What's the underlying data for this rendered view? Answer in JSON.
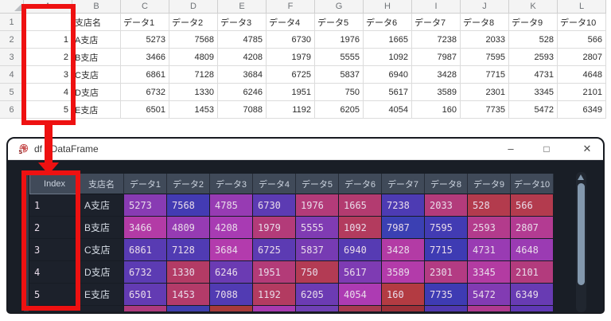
{
  "shared_table": {
    "index": [
      "1",
      "2",
      "3",
      "4",
      "5"
    ],
    "branches": [
      "A支店",
      "B支店",
      "C支店",
      "D支店",
      "E支店"
    ],
    "data_series": [
      [
        5273,
        7568,
        4785,
        6730,
        1976,
        1665,
        7238,
        2033,
        528,
        566
      ],
      [
        3466,
        4809,
        4208,
        1979,
        5555,
        1092,
        7987,
        7595,
        2593,
        2807
      ],
      [
        6861,
        7128,
        3684,
        6725,
        5837,
        6940,
        3428,
        7715,
        4731,
        4648
      ],
      [
        6732,
        1330,
        6246,
        1951,
        750,
        5617,
        3589,
        2301,
        3345,
        2101
      ],
      [
        6501,
        1453,
        7088,
        1192,
        6205,
        4054,
        160,
        7735,
        5472,
        6349
      ]
    ]
  },
  "excel": {
    "column_letters": [
      "A",
      "B",
      "C",
      "D",
      "E",
      "F",
      "G",
      "H",
      "I",
      "J",
      "K",
      "L"
    ],
    "row_numbers": [
      "1",
      "2",
      "3",
      "4",
      "5",
      "6"
    ],
    "header_cells": [
      "",
      "支店名",
      "データ1",
      "データ2",
      "データ3",
      "データ4",
      "データ5",
      "データ6",
      "データ7",
      "データ8",
      "データ9",
      "データ10"
    ]
  },
  "window": {
    "title": "df - DataFrame",
    "controls": {
      "minimize": "–",
      "maximize": "□",
      "close": "✕"
    }
  },
  "dataframe": {
    "corner_label": "Index",
    "column_headers": [
      "支店名",
      "データ1",
      "データ2",
      "データ3",
      "データ4",
      "データ5",
      "データ6",
      "データ7",
      "データ8",
      "データ9",
      "データ10"
    ],
    "colormap": {
      "min_hue": 0.66,
      "hue_range": 0.33,
      "saturation": 0.67,
      "value": 0.7
    },
    "partial_next_row_colors": [
      "#ae3a7e",
      "#3f3fae",
      "#a83a3a",
      "#a83ab0",
      "#7040b5",
      "#a83a50",
      "#9c3038",
      "#5038b0",
      "#b03a90",
      "#6038b5"
    ]
  },
  "colors": {
    "annotation_red": "#ee1111",
    "titlebar_bg": "#ffffff",
    "window_bg": "#191e26",
    "table_header_bg": "#404a59",
    "dark_cell_bg": "#1c212b",
    "row_strip_bg": "#353d4a",
    "scrollbar_thumb": "#8398ad"
  }
}
